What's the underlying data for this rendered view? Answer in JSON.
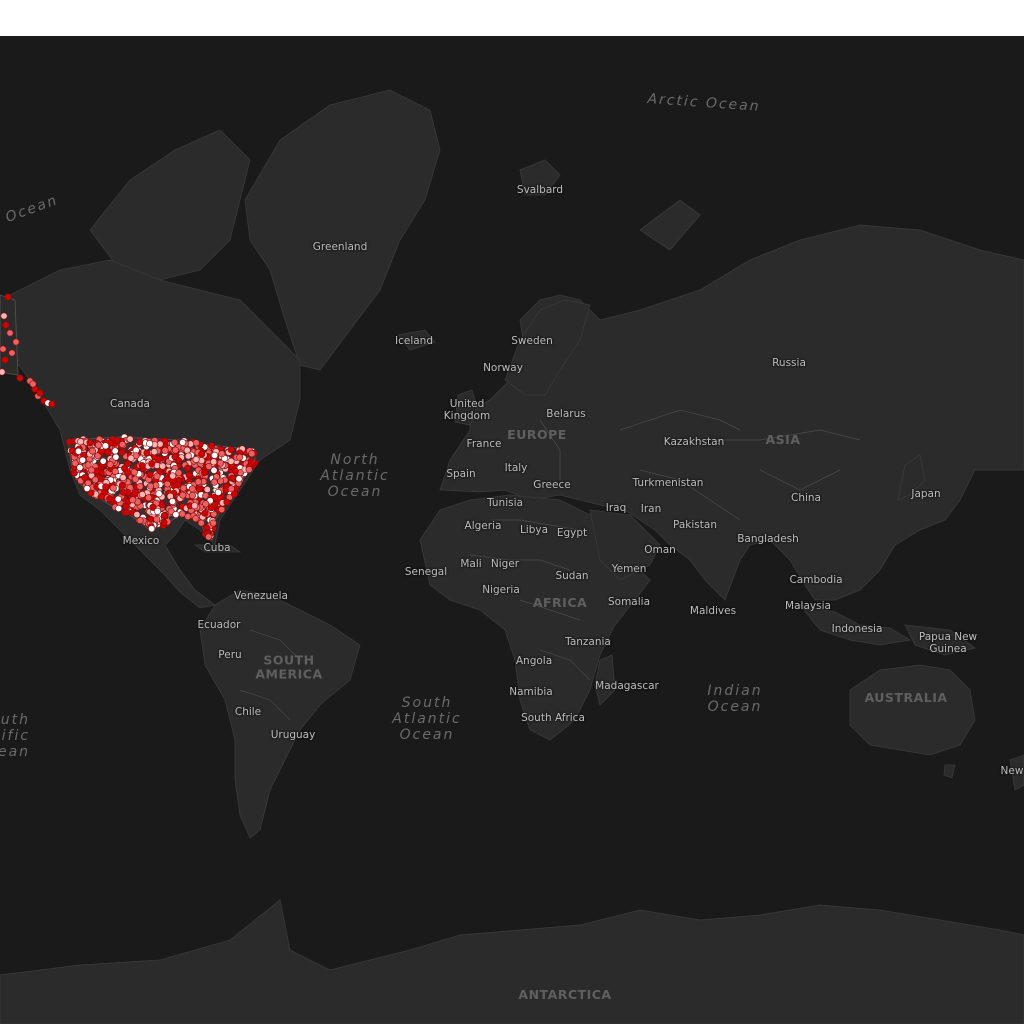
{
  "map": {
    "colors": {
      "ocean": "#1a1a1a",
      "land": "#2b2b2b",
      "border": "#4a4a4a",
      "point_dark": "#d40000",
      "point_mid": "#f06060",
      "point_light": "#f9b4b4",
      "point_white": "#ffffff"
    },
    "continents": {
      "europe": "EUROPE",
      "asia": "ASIA",
      "africa": "AFRICA",
      "south_america": "SOUTH\nAMERICA",
      "australia": "AUSTRALIA",
      "antarctica": "ANTARCTICA"
    },
    "oceans": {
      "arctic": "Arctic Ocean",
      "north_atlantic": "North\nAtlantic\nOcean",
      "south_atlantic": "South\nAtlantic\nOcean",
      "indian": "Indian\nOcean",
      "pacific_north_fragment": "Ocean",
      "south_pacific_fragment": "uth\nific\nean"
    },
    "countries": {
      "svalbard": "Svalbard",
      "greenland": "Greenland",
      "iceland": "Iceland",
      "sweden": "Sweden",
      "norway": "Norway",
      "russia": "Russia",
      "canada": "Canada",
      "united_kingdom": "United\nKingdom",
      "belarus": "Belarus",
      "france": "France",
      "kazakhstan": "Kazakhstan",
      "spain": "Spain",
      "italy": "Italy",
      "greece": "Greece",
      "turkmenistan": "Turkmenistan",
      "tunisia": "Tunisia",
      "china": "China",
      "japan": "Japan",
      "iraq": "Iraq",
      "iran": "Iran",
      "algeria": "Algeria",
      "libya": "Libya",
      "egypt": "Egypt",
      "pakistan": "Pakistan",
      "mexico": "Mexico",
      "cuba": "Cuba",
      "bangladesh": "Bangladesh",
      "oman": "Oman",
      "senegal": "Senegal",
      "mali": "Mali",
      "niger": "Niger",
      "sudan": "Sudan",
      "yemen": "Yemen",
      "cambodia": "Cambodia",
      "nigeria": "Nigeria",
      "venezuela": "Venezuela",
      "somalia": "Somalia",
      "maldives": "Maldives",
      "malaysia": "Malaysia",
      "ecuador": "Ecuador",
      "indonesia": "Indonesia",
      "papua_new_guinea": "Papua New\nGuinea",
      "tanzania": "Tanzania",
      "peru": "Peru",
      "angola": "Angola",
      "madagascar": "Madagascar",
      "namibia": "Namibia",
      "chile": "Chile",
      "south_africa": "South Africa",
      "uruguay": "Uruguay",
      "new_zealand_fragment": "New"
    }
  }
}
